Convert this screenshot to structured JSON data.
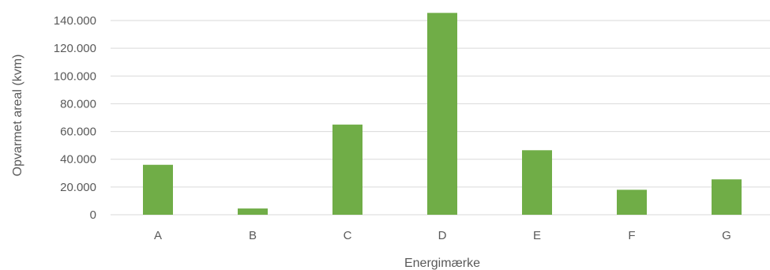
{
  "chart_data": {
    "type": "bar",
    "title": "",
    "xlabel": "Energimærke",
    "ylabel": "Opvarmet  areal  (kvm)",
    "categories": [
      "A",
      "B",
      "C",
      "D",
      "E",
      "F",
      "G"
    ],
    "series": [
      {
        "values": [
          36000,
          4500,
          65000,
          145500,
          46500,
          18000,
          25500
        ],
        "color": "#70ad47"
      }
    ],
    "ylim": [
      0,
      140000
    ],
    "yticks": [
      0,
      20000,
      40000,
      60000,
      80000,
      100000,
      120000,
      140000
    ],
    "ytick_labels": [
      "0",
      "20.000",
      "40.000",
      "60.000",
      "80.000",
      "100.000",
      "120.000",
      "140.000"
    ],
    "grid": true,
    "legend": "none"
  }
}
